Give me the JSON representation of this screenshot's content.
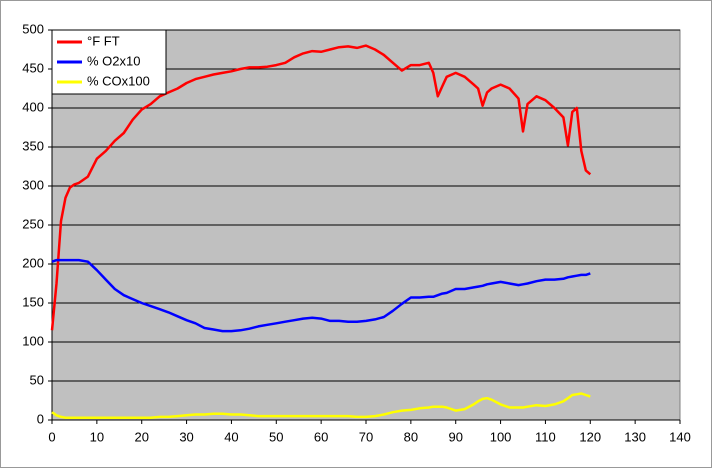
{
  "chart_data": {
    "type": "line",
    "x": [
      0,
      1,
      2,
      3,
      4,
      5,
      6,
      8,
      10,
      12,
      14,
      16,
      18,
      20,
      22,
      24,
      26,
      28,
      30,
      32,
      34,
      36,
      38,
      40,
      42,
      44,
      46,
      48,
      50,
      52,
      54,
      56,
      58,
      60,
      62,
      64,
      66,
      68,
      70,
      72,
      74,
      76,
      78,
      80,
      82,
      84,
      85,
      86,
      87,
      88,
      90,
      92,
      94,
      95,
      96,
      97,
      98,
      100,
      102,
      104,
      105,
      106,
      108,
      110,
      112,
      114,
      115,
      116,
      117,
      118,
      119,
      120
    ],
    "series": [
      {
        "name": "°F FT",
        "color": "#ff0000",
        "values": [
          115,
          175,
          255,
          285,
          298,
          302,
          304,
          312,
          335,
          345,
          358,
          368,
          385,
          398,
          405,
          415,
          420,
          425,
          432,
          437,
          440,
          443,
          445,
          447,
          450,
          452,
          452,
          453,
          455,
          458,
          465,
          470,
          473,
          472,
          475,
          478,
          479,
          477,
          480,
          475,
          468,
          458,
          448,
          455,
          455,
          458,
          445,
          415,
          428,
          440,
          445,
          440,
          430,
          425,
          403,
          420,
          425,
          430,
          425,
          412,
          370,
          405,
          415,
          410,
          400,
          388,
          352,
          395,
          400,
          345,
          320,
          315
        ]
      },
      {
        "name": "% O2x10",
        "color": "#0000ff",
        "values": [
          203,
          205,
          205,
          205,
          205,
          205,
          205,
          203,
          192,
          180,
          168,
          160,
          155,
          150,
          146,
          142,
          138,
          133,
          128,
          124,
          118,
          116,
          114,
          114,
          115,
          117,
          120,
          122,
          124,
          126,
          128,
          130,
          131,
          130,
          127,
          127,
          126,
          126,
          127,
          129,
          132,
          140,
          149,
          157,
          157,
          158,
          158,
          160,
          162,
          163,
          168,
          168,
          170,
          171,
          172,
          174,
          175,
          177,
          175,
          173,
          174,
          175,
          178,
          180,
          180,
          181,
          183,
          184,
          185,
          186,
          186,
          188
        ]
      },
      {
        "name": "% COx100",
        "color": "#ffff00",
        "values": [
          10,
          6,
          4,
          3,
          3,
          3,
          3,
          3,
          3,
          3,
          3,
          3,
          3,
          3,
          3,
          4,
          4,
          5,
          6,
          7,
          7,
          8,
          8,
          7,
          7,
          6,
          5,
          5,
          5,
          5,
          5,
          5,
          5,
          5,
          5,
          5,
          5,
          4,
          4,
          5,
          7,
          10,
          12,
          13,
          15,
          16,
          17,
          17,
          17,
          16,
          12,
          14,
          20,
          24,
          27,
          28,
          26,
          20,
          16,
          16,
          16,
          17,
          19,
          18,
          20,
          24,
          28,
          32,
          33,
          34,
          32,
          30
        ]
      }
    ],
    "xlim": [
      0,
      140
    ],
    "xticks": [
      0,
      10,
      20,
      30,
      40,
      50,
      60,
      70,
      80,
      90,
      100,
      110,
      120,
      130,
      140
    ],
    "ylim": [
      0,
      500
    ],
    "yticks": [
      0,
      50,
      100,
      150,
      200,
      250,
      300,
      350,
      400,
      450,
      500
    ],
    "grid": true,
    "legend": "top-left",
    "plot_background": "#c0c0c0"
  }
}
